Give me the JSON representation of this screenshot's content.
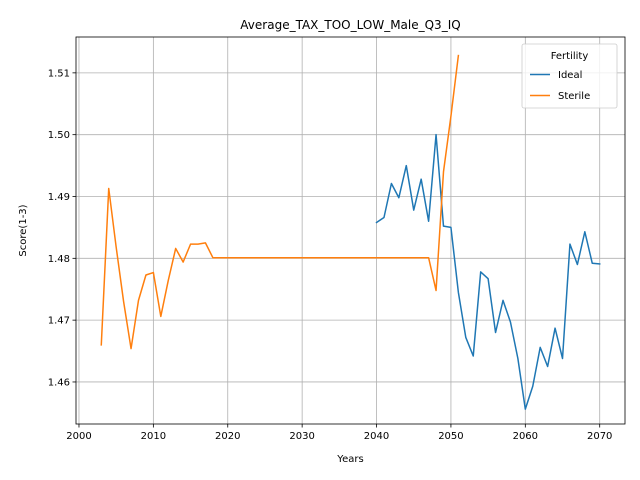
{
  "chart_data": {
    "type": "line",
    "title": "Average_TAX_TOO_LOW_Male_Q3_IQ",
    "xlabel": "Years",
    "ylabel": "Score(1-3)",
    "xlim": [
      1999.6,
      2073.4
    ],
    "ylim": [
      1.4532,
      1.5158
    ],
    "xticks": [
      2000,
      2010,
      2020,
      2030,
      2040,
      2050,
      2060,
      2070
    ],
    "yticks": [
      1.46,
      1.47,
      1.48,
      1.49,
      1.5,
      1.51
    ],
    "xtick_labels": [
      "2000",
      "2010",
      "2020",
      "2030",
      "2040",
      "2050",
      "2060",
      "2070"
    ],
    "ytick_labels": [
      "1.46",
      "1.47",
      "1.48",
      "1.49",
      "1.50",
      "1.51"
    ],
    "grid": true,
    "legend": {
      "title": "Fertility",
      "placement": "top-right"
    },
    "series": [
      {
        "name": "Ideal",
        "color": "#1f77b4",
        "points": [
          [
            2040,
            1.4858
          ],
          [
            2041,
            1.4866
          ],
          [
            2042,
            1.4921
          ],
          [
            2043,
            1.4898
          ],
          [
            2044,
            1.495
          ],
          [
            2045,
            1.4878
          ],
          [
            2046,
            1.4928
          ],
          [
            2047,
            1.486
          ],
          [
            2048,
            1.5
          ],
          [
            2049,
            1.4852
          ],
          [
            2050,
            1.485
          ],
          [
            2051,
            1.4745
          ],
          [
            2052,
            1.4672
          ],
          [
            2053,
            1.4642
          ],
          [
            2054,
            1.4778
          ],
          [
            2055,
            1.4767
          ],
          [
            2056,
            1.468
          ],
          [
            2057,
            1.4732
          ],
          [
            2058,
            1.4697
          ],
          [
            2059,
            1.4638
          ],
          [
            2060,
            1.4556
          ],
          [
            2061,
            1.4593
          ],
          [
            2062,
            1.4656
          ],
          [
            2063,
            1.4625
          ],
          [
            2064,
            1.4687
          ],
          [
            2065,
            1.4638
          ],
          [
            2066,
            1.4823
          ],
          [
            2067,
            1.479
          ],
          [
            2068,
            1.4843
          ],
          [
            2069,
            1.4792
          ],
          [
            2070,
            1.4791
          ]
        ]
      },
      {
        "name": "Sterile",
        "color": "#ff7f0e",
        "points": [
          [
            2003,
            1.466
          ],
          [
            2004,
            1.4913
          ],
          [
            2005,
            1.4818
          ],
          [
            2006,
            1.473
          ],
          [
            2007,
            1.4654
          ],
          [
            2008,
            1.4732
          ],
          [
            2009,
            1.4773
          ],
          [
            2010,
            1.4777
          ],
          [
            2011,
            1.4706
          ],
          [
            2012,
            1.4764
          ],
          [
            2013,
            1.4816
          ],
          [
            2014,
            1.4794
          ],
          [
            2015,
            1.4823
          ],
          [
            2016,
            1.4823
          ],
          [
            2017,
            1.4825
          ],
          [
            2018,
            1.4801
          ],
          [
            2019,
            1.4801
          ],
          [
            2020,
            1.4801
          ],
          [
            2021,
            1.4801
          ],
          [
            2022,
            1.4801
          ],
          [
            2023,
            1.4801
          ],
          [
            2024,
            1.4801
          ],
          [
            2025,
            1.4801
          ],
          [
            2026,
            1.4801
          ],
          [
            2027,
            1.4801
          ],
          [
            2028,
            1.4801
          ],
          [
            2029,
            1.4801
          ],
          [
            2030,
            1.4801
          ],
          [
            2031,
            1.4801
          ],
          [
            2032,
            1.4801
          ],
          [
            2033,
            1.4801
          ],
          [
            2034,
            1.4801
          ],
          [
            2035,
            1.4801
          ],
          [
            2036,
            1.4801
          ],
          [
            2037,
            1.4801
          ],
          [
            2038,
            1.4801
          ],
          [
            2039,
            1.4801
          ],
          [
            2040,
            1.4801
          ],
          [
            2041,
            1.4801
          ],
          [
            2042,
            1.4801
          ],
          [
            2043,
            1.4801
          ],
          [
            2044,
            1.4801
          ],
          [
            2045,
            1.4801
          ],
          [
            2046,
            1.4801
          ],
          [
            2047,
            1.4801
          ],
          [
            2048,
            1.4748
          ],
          [
            2049,
            1.494
          ],
          [
            2050,
            1.503
          ],
          [
            2051,
            1.5128
          ]
        ]
      }
    ]
  }
}
